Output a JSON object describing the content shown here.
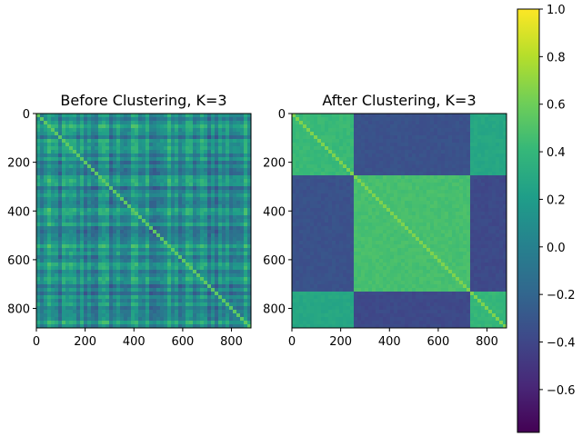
{
  "chart_data": [
    {
      "type": "heatmap",
      "title": "Before Clustering, K=3",
      "n": 880,
      "xlim": [
        0,
        880
      ],
      "ylim": [
        880,
        0
      ],
      "xticks": [
        0,
        200,
        400,
        600,
        800
      ],
      "yticks": [
        0,
        200,
        400,
        600,
        800
      ],
      "description_value_range": [
        -0.4,
        0.6
      ],
      "typical_value": 0.05,
      "diagonal_value": 1.0,
      "colormap": "viridis"
    },
    {
      "type": "heatmap",
      "title": "After Clustering, K=3",
      "n": 880,
      "xlim": [
        0,
        880
      ],
      "ylim": [
        880,
        0
      ],
      "xticks": [
        0,
        200,
        400,
        600,
        800
      ],
      "yticks": [
        0,
        200,
        400,
        600,
        800
      ],
      "clusters": [
        {
          "start": 0,
          "end": 255
        },
        {
          "start": 255,
          "end": 730
        },
        {
          "start": 730,
          "end": 880
        }
      ],
      "within_cluster_value": 0.45,
      "between_cluster_value": -0.35,
      "cluster_pair_values": [
        [
          0.42,
          -0.33,
          0.28
        ],
        [
          -0.33,
          0.47,
          -0.38
        ],
        [
          0.28,
          -0.38,
          0.4
        ]
      ],
      "diagonal_value": 1.0,
      "colormap": "viridis"
    }
  ],
  "colorbar": {
    "vmin": -0.78,
    "vmax": 1.0,
    "ticks": [
      -0.6,
      -0.4,
      -0.2,
      0.0,
      0.2,
      0.4,
      0.6,
      0.8,
      1.0
    ],
    "tick_labels": [
      "−0.6",
      "−0.4",
      "−0.2",
      "0.0",
      "0.2",
      "0.4",
      "0.6",
      "0.8",
      "1.0"
    ]
  },
  "colors": {
    "viridis_stops": [
      "#440154",
      "#482878",
      "#3e4989",
      "#31688e",
      "#26828e",
      "#1f9e89",
      "#35b779",
      "#6ece58",
      "#b5de2b",
      "#fde725"
    ]
  }
}
